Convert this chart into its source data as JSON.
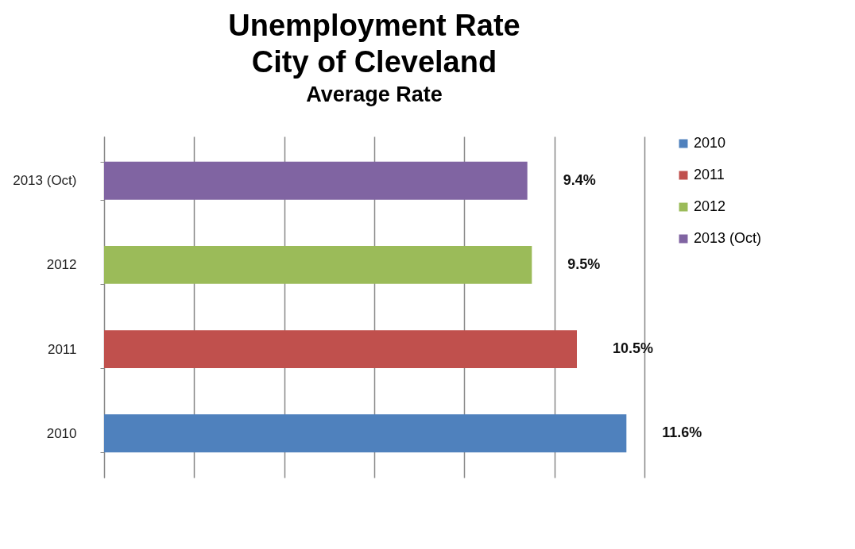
{
  "chart_data": {
    "type": "bar",
    "orientation": "horizontal",
    "title": "Unemployment Rate\nCity of Cleveland",
    "subtitle": "Average Rate",
    "categories": [
      "2013 (Oct)",
      "2012",
      "2011",
      "2010"
    ],
    "series": [
      {
        "name": "2010",
        "color": "#4f81bd",
        "values": [
          null,
          null,
          null,
          11.6
        ],
        "value_labels": [
          null,
          null,
          null,
          "11.6%"
        ]
      },
      {
        "name": "2011",
        "color": "#c0504d",
        "values": [
          null,
          null,
          10.5,
          null
        ],
        "value_labels": [
          null,
          null,
          "10.5%",
          null
        ]
      },
      {
        "name": "2012",
        "color": "#9bbb59",
        "values": [
          null,
          9.5,
          null,
          null
        ],
        "value_labels": [
          null,
          "9.5%",
          null,
          null
        ]
      },
      {
        "name": "2013 (Oct)",
        "color": "#8064a2",
        "values": [
          9.4,
          null,
          null,
          null
        ],
        "value_labels": [
          "9.4%",
          null,
          null,
          null
        ]
      }
    ],
    "xlim": [
      0,
      12
    ],
    "xticks": [
      {
        "value": 0,
        "label": null
      },
      {
        "value": 2,
        "label": null
      },
      {
        "value": 4,
        "label": null
      },
      {
        "value": 6,
        "label": null
      },
      {
        "value": 8,
        "label": null
      },
      {
        "value": 10,
        "label": null
      },
      {
        "value": 12,
        "label": null
      }
    ],
    "grid": "x",
    "legend": "right",
    "tick_labels": "y"
  }
}
